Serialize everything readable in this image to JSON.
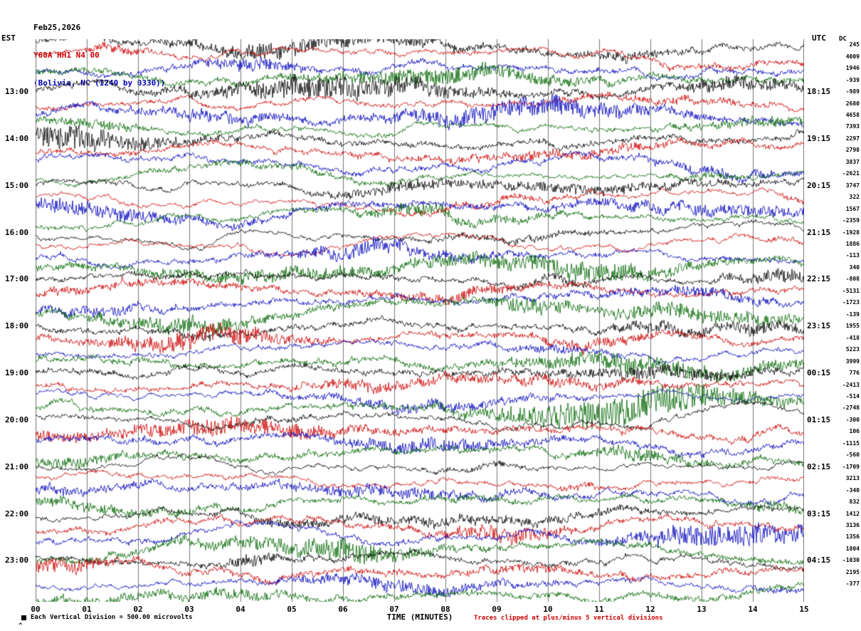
{
  "header": {
    "date": "Feb25,2026",
    "station": "Y60A HH1 N4 00",
    "location": "(Bolivia, NC (I240 by 0330))"
  },
  "axes": {
    "left_title": "EST",
    "right_title": "UTC",
    "dc_title": "DC",
    "x_title": "TIME (MINUTES)"
  },
  "footer": {
    "division_note": "Each Vertical Division =  500.00 microvolts",
    "clip_note": "Traces clipped at plus/minus 5 vertical divisions",
    "corner_mark": "^"
  },
  "colors": {
    "trace_cycle": [
      "#000000",
      "#cc0000",
      "#0000bb",
      "#006600"
    ],
    "grid": "#777777",
    "station_text": "#cc0000",
    "location_text": "#0000bb",
    "clip_note_text": "#cc0000"
  },
  "chart_data": {
    "type": "line",
    "variant": "helicorder-seismogram",
    "station": "Y60A HH1 N4 00",
    "date": "Feb25,2026",
    "xlabel": "TIME (MINUTES)",
    "x_ticks": [
      "00",
      "01",
      "02",
      "03",
      "04",
      "05",
      "06",
      "07",
      "08",
      "09",
      "10",
      "11",
      "12",
      "13",
      "14",
      "15"
    ],
    "x_range_minutes": [
      0,
      15
    ],
    "minutes_per_row": 15,
    "rows_count": 48,
    "trace_color_cycle": [
      "#000000",
      "#cc0000",
      "#0000bb",
      "#006600"
    ],
    "left_hour_labels": [
      {
        "row": 4,
        "label": "13:00"
      },
      {
        "row": 8,
        "label": "14:00"
      },
      {
        "row": 12,
        "label": "15:00"
      },
      {
        "row": 16,
        "label": "16:00"
      },
      {
        "row": 20,
        "label": "17:00"
      },
      {
        "row": 24,
        "label": "18:00"
      },
      {
        "row": 28,
        "label": "19:00"
      },
      {
        "row": 32,
        "label": "20:00"
      },
      {
        "row": 36,
        "label": "21:00"
      },
      {
        "row": 40,
        "label": "22:00"
      },
      {
        "row": 44,
        "label": "23:00"
      }
    ],
    "right_utc_labels": [
      {
        "row": 4,
        "label": "18:15"
      },
      {
        "row": 8,
        "label": "19:15"
      },
      {
        "row": 12,
        "label": "20:15"
      },
      {
        "row": 16,
        "label": "21:15"
      },
      {
        "row": 20,
        "label": "22:15"
      },
      {
        "row": 24,
        "label": "23:15"
      },
      {
        "row": 28,
        "label": "00:15"
      },
      {
        "row": 32,
        "label": "01:15"
      },
      {
        "row": 36,
        "label": "02:15"
      },
      {
        "row": 40,
        "label": "03:15"
      },
      {
        "row": 44,
        "label": "04:15"
      }
    ],
    "dc_values": [
      245,
      4009,
      1946,
      -939,
      -989,
      2680,
      4658,
      7393,
      2297,
      2798,
      3837,
      -2621,
      3747,
      322,
      1567,
      -2359,
      -1928,
      1886,
      -113,
      340,
      -808,
      -5131,
      -1723,
      -139,
      1955,
      -418,
      5223,
      3999,
      776,
      -2413,
      -514,
      -2748,
      -300,
      106,
      -1115,
      -560,
      -1709,
      3213,
      -340,
      832,
      1412,
      3136,
      1356,
      1804,
      -1030,
      2195,
      -377
    ],
    "clip_note": "Traces clipped at plus/minus 5 vertical divisions",
    "vertical_division": "500.00 microvolts"
  }
}
